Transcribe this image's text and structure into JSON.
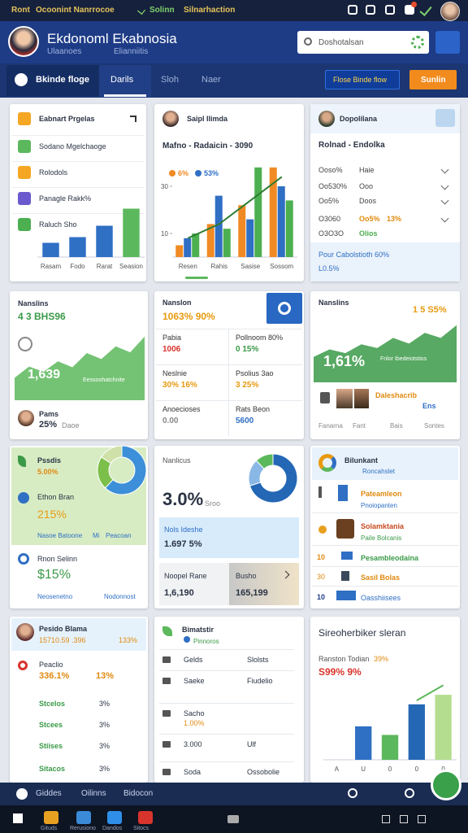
{
  "status_bar": {
    "items": [
      "Ront",
      "Ocoonint Nanrrocoe",
      "Solinn",
      "Silnarhaction"
    ]
  },
  "header": {
    "title": "Ekdonoml Ekabnosia",
    "subtitle": "Ulaanoes",
    "subtitle2": "Elianniitis",
    "search_placeholder": "Doshotalsan"
  },
  "tabs": {
    "items": [
      "Bkinde floge",
      "Darils",
      "Sloh",
      "Naer"
    ],
    "buttons": [
      "Flose Binde flow",
      "Sunlin"
    ]
  },
  "cards": [
    {
      "title": "Eabnart Prgelas",
      "items": [
        "Sodano Mgelchaoge",
        "Rolodols",
        "Panagle Rakk%",
        "Raluch Sho"
      ],
      "chart": {
        "type": "bar",
        "categories": [
          "Rasam",
          "Fodo",
          "Rarat",
          "Seasion"
        ],
        "values": [
          2.5,
          3.5,
          5.5,
          8.5
        ],
        "colors": [
          "#2f6fc4",
          "#2f6fc4",
          "#2f6fc4",
          "#5cb85c"
        ],
        "ylim": [
          0,
          10
        ]
      }
    },
    {
      "title": "Saipl Ilimda",
      "chart": {
        "type": "bar",
        "subtitle": "Mafno - Radaicin - 3090",
        "categories": [
          "Resen",
          "Rahis",
          "Sasise",
          "Sossom"
        ],
        "series": [
          {
            "name": "6%",
            "color": "#f08a24",
            "values": [
              5,
              14,
              22,
              38
            ]
          },
          {
            "name": "53%",
            "color": "#2f6fc4",
            "values": [
              8,
              26,
              16,
              30
            ]
          },
          {
            "color": "#4caf50",
            "values": [
              10,
              12,
              38,
              24
            ]
          }
        ],
        "line": {
          "color": "#2e7d32",
          "values": [
            8,
            14,
            24,
            34
          ]
        },
        "ylim": [
          0,
          40
        ],
        "yticks": [
          10,
          30
        ]
      }
    },
    {
      "title": "Dopolilana",
      "subtitle": "Rolnad - Endolka",
      "rows": [
        [
          "Ooso%",
          "Haie"
        ],
        [
          "Oo530%",
          "Ooo"
        ],
        [
          "Oo5%",
          "Doos"
        ],
        [
          "O3060",
          "Oo5%",
          "13%"
        ],
        [
          "O3O3O",
          "Olios"
        ]
      ],
      "footer": "Pour Cabolstioth 60%",
      "footer_value": "L0.5%"
    },
    {
      "title": "Nanslins",
      "value": "4 3 BHS96",
      "chart": {
        "type": "area",
        "color": "#5cb85c",
        "values": [
          3,
          4.5,
          3.8,
          5.2,
          4.4,
          6.3,
          5.5,
          7.2,
          6.4,
          8.5
        ],
        "ylim": [
          0,
          10
        ]
      },
      "big": "1,639",
      "caption": "Eessoohatchnite",
      "person": "Pams",
      "person_value": "25%",
      "person_note": "Daoe"
    },
    {
      "title": "Nanslon",
      "value": "1063% 90%",
      "cells": [
        [
          "Pabia",
          "1006"
        ],
        [
          "Pollnoom 80%",
          "0 15%"
        ],
        [
          "Neslnie",
          "30% 16%"
        ],
        [
          "Psolius 3ao",
          "3 25%"
        ],
        [
          "Anoecioses",
          "0.00"
        ],
        [
          "Rats Beon",
          "5600"
        ]
      ]
    },
    {
      "title": "Nanslins",
      "value": "1 5 S5%",
      "chart": {
        "type": "area",
        "color": "#3a9a48",
        "values": [
          4,
          5.2,
          4.6,
          6,
          5.4,
          7,
          6.1,
          7.8,
          7,
          9
        ],
        "ylim": [
          0,
          10
        ]
      },
      "big": "1,61%",
      "caption": "Fnlor Ibedeiotstios",
      "person": "Daleshacrib",
      "person_value": "Ens",
      "footer": [
        "Fanarna",
        "Fant",
        "Bais",
        "Sontes"
      ]
    },
    {
      "title": "Pssdis",
      "value": "5.00%",
      "items": [
        {
          "label": "Ethon Bran",
          "value": "215%"
        },
        {
          "label": "Rnon Selinn",
          "value": "$15%"
        }
      ],
      "note": [
        "Nasoe Batoone",
        "Mi",
        "Peacoan"
      ],
      "note2": [
        "Neosenetno",
        "Nodonnost"
      ],
      "chart": {
        "type": "pie",
        "values": [
          62,
          22,
          16
        ],
        "colors": [
          "#3c8fd8",
          "#7cbf4a",
          "#cfe0a8"
        ]
      }
    },
    {
      "title": "Nanlicus",
      "big": "3.0%",
      "big_note": "Sroo",
      "row1": {
        "label": "Nols Ideshe",
        "value": "1.697 5%"
      },
      "row2": [
        {
          "label": "Noopel Rane",
          "value": "1,6,190"
        },
        {
          "label": "Busho",
          "value": "165,199"
        }
      ],
      "chart": {
        "type": "pie",
        "values": [
          70,
          18,
          12
        ],
        "colors": [
          "#2467b5",
          "#8ab8e6",
          "#5cb85c"
        ]
      }
    },
    {
      "title": "Bilunkant",
      "subtitle": "Roncahslet",
      "rows": [
        {
          "label": "Pateamleon",
          "note": "Pnoiopanten"
        },
        {
          "label": "Solamktania",
          "note": "Paile Bolcanis"
        },
        {
          "label": "Pesambleodaina",
          "key": "10"
        },
        {
          "label": "Sasil Bolas",
          "key": "30"
        },
        {
          "label": "Oasshiisees",
          "key": "10"
        }
      ]
    },
    {
      "title": "Pesido Blama",
      "value": "15710.59 .396",
      "value2": "133%",
      "rows": [
        [
          "Peaclio",
          "336.1%",
          "13%"
        ],
        [
          "Stcelos",
          "3%"
        ],
        [
          "Stcees",
          "3%"
        ],
        [
          "Stiises",
          "3%"
        ],
        [
          "Sitacos",
          "3%"
        ]
      ]
    },
    {
      "title": "Bimatstir",
      "subtitle": "Pinnoros",
      "rows": [
        [
          "Gelds",
          "Slolsts"
        ],
        [
          "Saeke",
          "Fiudelio"
        ],
        [
          "Sacho",
          "1.00%"
        ],
        [
          "3.000",
          "Ulf"
        ],
        [
          "Soda",
          "Ossobolie"
        ]
      ]
    },
    {
      "title": "Sireoherbiker sleran",
      "subtitle": "Ranston Todian",
      "subtitle_value": "39%",
      "value": "S99% 9%",
      "chart": {
        "type": "bar",
        "categories": [
          "A",
          "U",
          "0",
          "0",
          "0"
        ],
        "values": [
          null,
          3.5,
          2.6,
          5.8,
          6.8
        ],
        "colors": [
          "#2f6fc4",
          "#2f6fc4",
          "#5cb85c",
          "#2467b5",
          "#b5dd8f"
        ],
        "line": {
          "color": "#5cb85c",
          "values": [
            null,
            null,
            null,
            6.2,
            7.8
          ]
        },
        "ylim": [
          0,
          8
        ]
      }
    }
  ],
  "bottom_nav": [
    "Giddes",
    "Oilinns",
    "Bidocon"
  ],
  "taskbar": [
    "Gituds",
    "Rerusiono",
    "Dandos",
    "Sitocs"
  ]
}
